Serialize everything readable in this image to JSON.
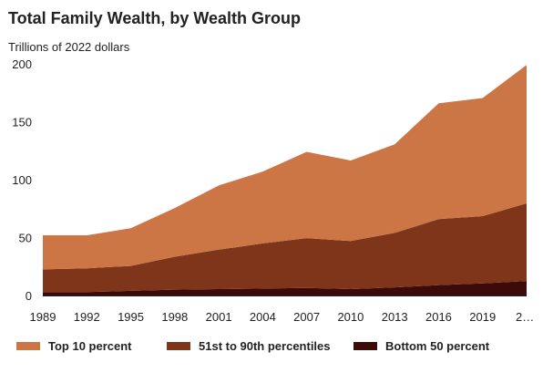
{
  "chart_data": {
    "type": "area",
    "stacked": true,
    "title": "Total Family Wealth, by Wealth Group",
    "subtitle": "Trillions of 2022 dollars",
    "xlabel": "",
    "ylabel": "",
    "x": [
      1989,
      1992,
      1995,
      1998,
      2001,
      2004,
      2007,
      2010,
      2013,
      2016,
      2019,
      2022
    ],
    "x_tick_labels": [
      "1989",
      "1992",
      "1995",
      "1998",
      "2001",
      "2004",
      "2007",
      "2010",
      "2013",
      "2016",
      "2019",
      "2…"
    ],
    "ylim": [
      0,
      200
    ],
    "y_ticks": [
      0,
      50,
      100,
      150,
      200
    ],
    "grid": false,
    "legend_position": "bottom",
    "series": [
      {
        "name": "Bottom 50 percent",
        "color": "#3d0a0a",
        "values": [
          3,
          3,
          4,
          5,
          5.5,
          6,
          6.5,
          5.5,
          7,
          9,
          10.5,
          12.5
        ]
      },
      {
        "name": "51st to 90th percentiles",
        "color": "#7e3519",
        "values": [
          19.5,
          20.5,
          21.5,
          28.5,
          34,
          39,
          43,
          41.5,
          47,
          57,
          58,
          67
        ]
      },
      {
        "name": "Top 10 percent",
        "color": "#cc7545",
        "values": [
          29.5,
          28.5,
          32.5,
          42,
          55.5,
          62,
          74.5,
          69.5,
          76.5,
          100,
          102,
          119.5
        ]
      }
    ],
    "legend_order": [
      "Top 10 percent",
      "51st to 90th percentiles",
      "Bottom 50 percent"
    ]
  }
}
